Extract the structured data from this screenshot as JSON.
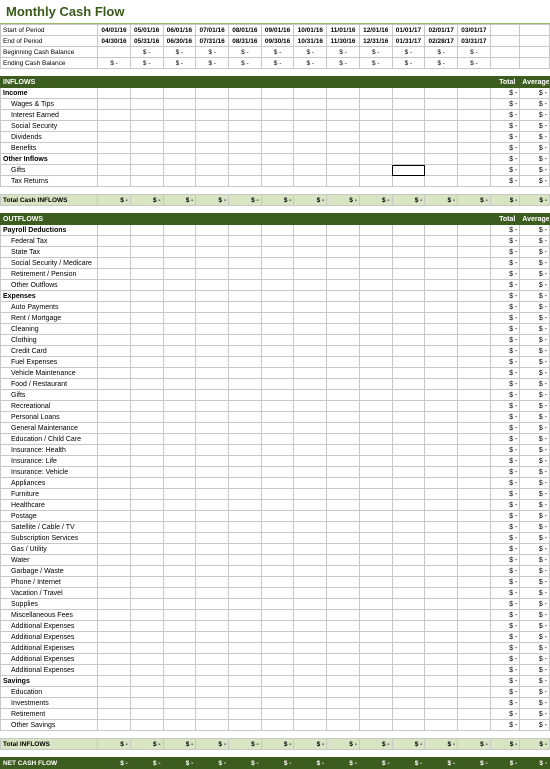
{
  "title": "Monthly Cash Flow",
  "periods": {
    "start_label": "Start of Period",
    "end_label": "End of Period",
    "starts": [
      "04/01/16",
      "05/01/16",
      "06/01/16",
      "07/01/16",
      "08/01/16",
      "09/01/16",
      "10/01/16",
      "11/01/16",
      "12/01/16",
      "01/01/17",
      "02/01/17",
      "03/01/17"
    ],
    "ends": [
      "04/30/16",
      "05/31/16",
      "06/30/16",
      "07/31/16",
      "08/31/16",
      "09/30/16",
      "10/31/16",
      "11/30/16",
      "12/31/16",
      "01/31/17",
      "02/28/17",
      "03/31/17"
    ]
  },
  "balance_rows": [
    {
      "label": "Beginning Cash Balance"
    },
    {
      "label": "Ending Cash Balance"
    }
  ],
  "inflows": {
    "header": "INFLOWS",
    "total_label": "Total",
    "avg_label": "Average",
    "groups": [
      {
        "name": "Income",
        "rows": [
          "Wages & Tips",
          "Interest Earned",
          "Social Security",
          "Dividends",
          "Benefits"
        ]
      },
      {
        "name": "Other Inflows",
        "rows": [
          "Gifts",
          "Tax Returns"
        ]
      }
    ],
    "total_row": "Total Cash INFLOWS"
  },
  "outflows": {
    "header": "OUTFLOWS",
    "total_label": "Total",
    "avg_label": "Average",
    "groups": [
      {
        "name": "Payroll Deductions",
        "rows": [
          "Federal Tax",
          "State Tax",
          "Social Security / Medicare",
          "Retirement / Pension",
          "Other Outflows"
        ]
      },
      {
        "name": "Expenses",
        "rows": [
          "Auto Payments",
          "Rent / Mortgage",
          "Cleaning",
          "Clothing",
          "Credit Card",
          "Fuel Expenses",
          "Vehicle Maintenance",
          "Food / Restaurant",
          "Gifts",
          "Recreational",
          "Personal Loans",
          "General Maintenance",
          "Education / Child Care",
          "Insurance: Health",
          "Insurance: Life",
          "Insurance: Vehicle",
          "Appliances",
          "Furniture",
          "Healthcare",
          "Postage",
          "Satellite / Cable / TV",
          "Subscription Services",
          "Gas / Utility",
          "Water",
          "Garbage / Waste",
          "Phone / Internet",
          "Vacation / Travel",
          "Supplies",
          "Miscellaneous Fees",
          "Additional Expenses",
          "Additional Expenses",
          "Additional Expenses",
          "Additional Expenses",
          "Additional Expenses"
        ]
      },
      {
        "name": "Savings",
        "rows": [
          "Education",
          "Investments",
          "Retirement",
          "Other Savings"
        ]
      }
    ],
    "total_row": "Total INFLOWS"
  },
  "net_row": "NET CASH FLOW",
  "dash": "$  -",
  "dash2": "$   -",
  "colors": {
    "accent": "#3d5c1f",
    "light": "#d8e4c2",
    "title": "#3a5a1a",
    "border": "#c8c8c8"
  },
  "selected_cell": {
    "section": "inflows",
    "group": 1,
    "row": 0,
    "col": 9
  }
}
